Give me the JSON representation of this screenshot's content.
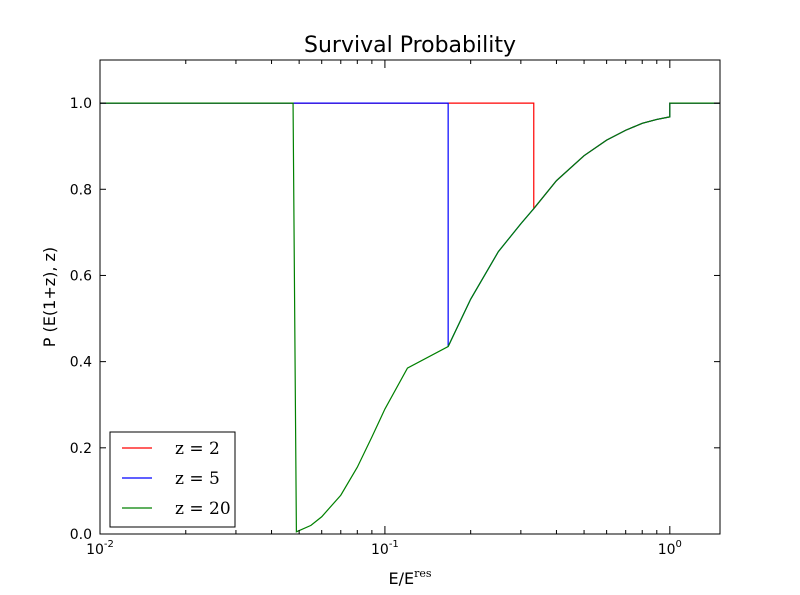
{
  "chart_data": {
    "type": "line",
    "title": "Survival Probability",
    "xlabel": "E/E",
    "xlabel_superscript": "res",
    "ylabel": "P (E(1+z), z)",
    "xscale": "log",
    "xlim": [
      0.01,
      1.5
    ],
    "ylim": [
      0.0,
      1.1
    ],
    "x_ticks": [
      {
        "value": 0.01,
        "base": "10",
        "exp": "-2"
      },
      {
        "value": 0.1,
        "base": "10",
        "exp": "-1"
      },
      {
        "value": 1,
        "base": "10",
        "exp": "0"
      }
    ],
    "y_ticks": [
      {
        "value": 0.0,
        "label": "0.0"
      },
      {
        "value": 0.2,
        "label": "0.2"
      },
      {
        "value": 0.4,
        "label": "0.4"
      },
      {
        "value": 0.6,
        "label": "0.6"
      },
      {
        "value": 0.8,
        "label": "0.8"
      },
      {
        "value": 1.0,
        "label": "1.0"
      }
    ],
    "grid": false,
    "legend_position": "lower-left",
    "series": [
      {
        "name": "z=2",
        "legend": "z = 2",
        "color": "#ff0000",
        "x": [
          0.01,
          0.333,
          0.333,
          1.0,
          1.0,
          1.5
        ],
        "y": [
          1.0,
          1.0,
          0.755,
          0.968,
          1.0,
          1.0
        ],
        "curve_from": 0.333
      },
      {
        "name": "z=5",
        "legend": "z = 5",
        "color": "#0000ff",
        "x": [
          0.01,
          0.1667,
          0.1667,
          1.0,
          1.0,
          1.5
        ],
        "y": [
          1.0,
          1.0,
          0.435,
          0.968,
          1.0,
          1.0
        ],
        "curve_from": 0.1667
      },
      {
        "name": "z=20",
        "legend": "z = 20",
        "color": "#008000",
        "x": [
          0.01,
          0.0476,
          0.0489,
          1.0,
          1.0,
          1.5
        ],
        "y": [
          1.0,
          1.0,
          0.005,
          0.968,
          1.0,
          1.0
        ],
        "curve_from": 0.0489
      }
    ],
    "curve": {
      "x": [
        0.0489,
        0.055,
        0.06,
        0.07,
        0.08,
        0.09,
        0.1,
        0.12,
        0.1667,
        0.2,
        0.25,
        0.3,
        0.333,
        0.4,
        0.5,
        0.6,
        0.7,
        0.8,
        0.9,
        1.0
      ],
      "y": [
        0.005,
        0.02,
        0.04,
        0.09,
        0.155,
        0.225,
        0.29,
        0.385,
        0.435,
        0.545,
        0.655,
        0.72,
        0.755,
        0.82,
        0.878,
        0.914,
        0.937,
        0.953,
        0.962,
        0.968
      ]
    }
  }
}
